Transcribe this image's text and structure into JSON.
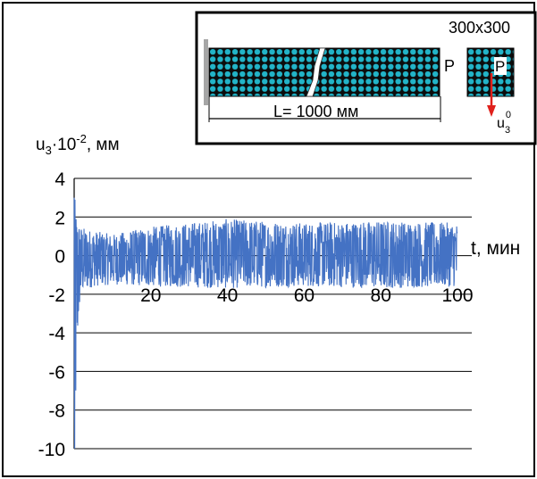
{
  "chart_data": {
    "type": "line",
    "ylabel": {
      "base": "u",
      "sub": "3",
      "mult": "·10",
      "exp": "-2",
      "unit": ", мм"
    },
    "xlabel": "t, мин",
    "xlim": [
      0,
      100
    ],
    "ylim": [
      -10,
      4
    ],
    "yticks": [
      "4",
      "2",
      "0",
      "-2",
      "-4",
      "-6",
      "-8",
      "-10"
    ],
    "xticks": [
      "20",
      "40",
      "60",
      "80",
      "100"
    ],
    "grid": true,
    "series": [
      {
        "color": "#4472c4",
        "description": "noisy oscillation: initial dip to about -10 and spike to 3 at t≈0, then fluctuating roughly between -1.8 and +1.8 around 0 up to t=100",
        "x": [
          0,
          0.3,
          0.6,
          1.0,
          1.5,
          2.0,
          3,
          5,
          10,
          20,
          40,
          60,
          80,
          100
        ],
        "y_min": [
          -10,
          -9.5,
          -6.5,
          -4.0,
          -2.5,
          -2.0,
          -1.8,
          -1.6,
          -1.5,
          -1.6,
          -1.7,
          -1.6,
          -1.7,
          -1.6
        ],
        "y_max": [
          3.0,
          2.9,
          2.5,
          2.0,
          1.6,
          1.5,
          1.4,
          1.3,
          1.1,
          1.5,
          1.9,
          1.7,
          1.8,
          1.7
        ]
      }
    ],
    "inset": {
      "length_label": "L= 1000 мм",
      "section_label": "300х300",
      "load_label": "P",
      "load_label_section": "P",
      "disp_label": {
        "base": "u",
        "sub": "3",
        "sup": "0"
      },
      "arrow_color": "#e0201b",
      "fill_color": "#22b4c8"
    }
  }
}
